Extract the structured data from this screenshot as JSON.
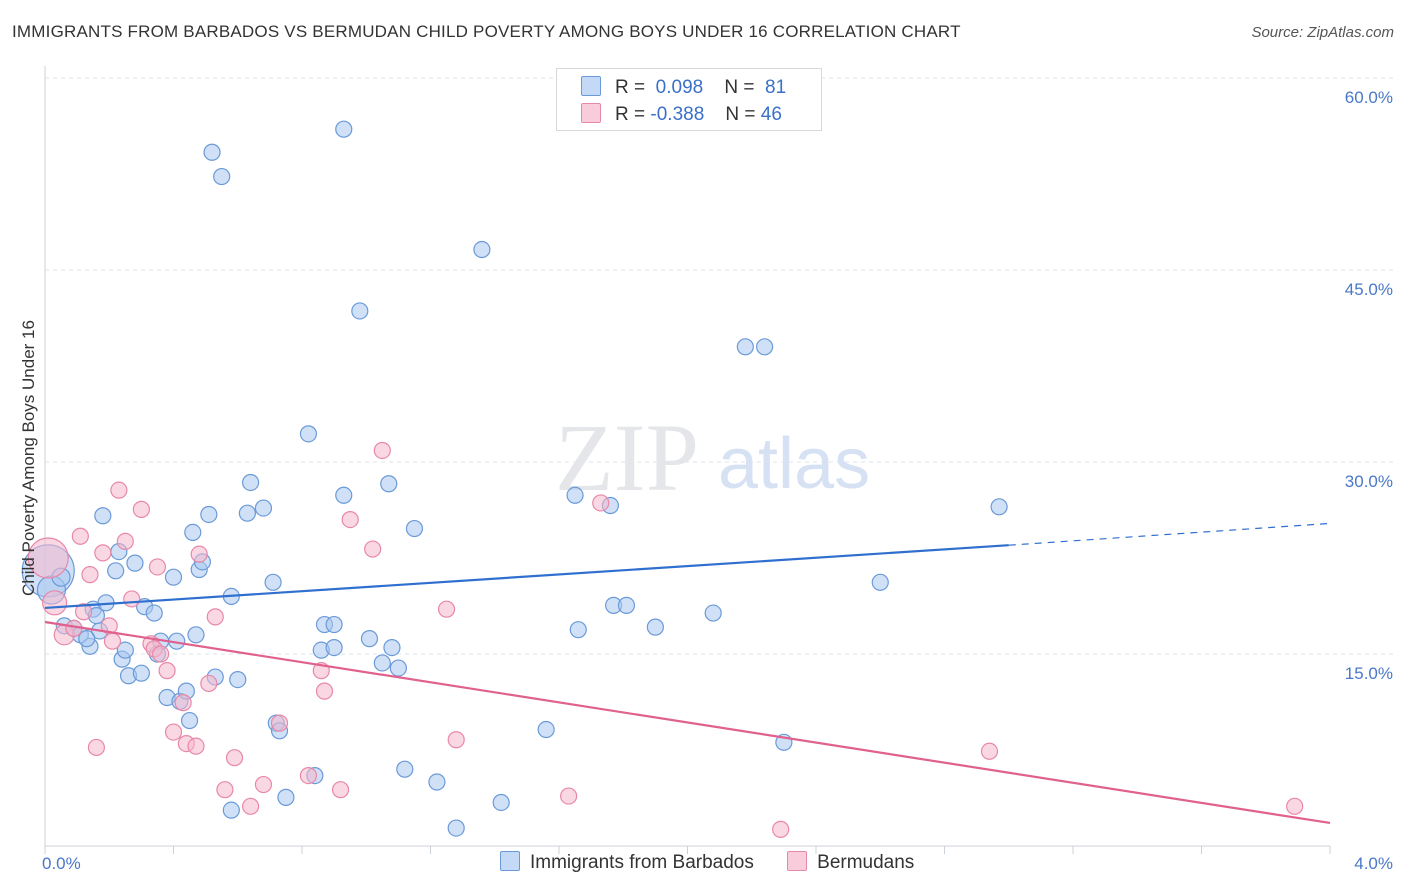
{
  "title": "IMMIGRANTS FROM BARBADOS VS BERMUDAN CHILD POVERTY AMONG BOYS UNDER 16 CORRELATION CHART",
  "source": "Source: ZipAtlas.com",
  "watermark": {
    "zip": "ZIP",
    "atlas": "atlas"
  },
  "colors": {
    "blue_fill": "#a9c8f0",
    "blue_stroke": "#6a9ad8",
    "blue_line": "#2f6fcf",
    "pink_fill": "#f5b8cc",
    "pink_stroke": "#e888a8",
    "pink_line": "#e0608e",
    "grid": "#dde3ec",
    "axis_label": "#4a78c8"
  },
  "legend": {
    "r_label": "R =",
    "n_label": "N =",
    "series": [
      {
        "r": "0.098",
        "n": "81"
      },
      {
        "r": "-0.388",
        "n": "46"
      }
    ]
  },
  "chart_data": {
    "type": "scatter",
    "title": "IMMIGRANTS FROM BARBADOS VS BERMUDAN CHILD POVERTY AMONG BOYS UNDER 16 CORRELATION CHART",
    "xlabel": "",
    "ylabel": "Child Poverty Among Boys Under 16",
    "xlim": [
      0,
      4
    ],
    "ylim": [
      0,
      60
    ],
    "x_tick_labels": [
      "0.0%",
      "4.0%"
    ],
    "y_tick_labels": [
      "15.0%",
      "30.0%",
      "45.0%",
      "60.0%"
    ],
    "y_ticks": [
      15,
      30,
      45,
      60
    ],
    "grid": true,
    "legend_position": "top-center",
    "series": [
      {
        "name": "Immigrants from Barbados",
        "trend": {
          "x": [
            0.0,
            3.0,
            4.0
          ],
          "y": [
            18.6,
            23.5,
            25.2
          ],
          "solid_until": 3.0
        },
        "points": [
          [
            0.01,
            21.5,
            26
          ],
          [
            0.02,
            20.0,
            14
          ],
          [
            0.05,
            21.0,
            9
          ],
          [
            0.06,
            17.2,
            8
          ],
          [
            0.09,
            17.0,
            8
          ],
          [
            0.11,
            16.5,
            8
          ],
          [
            0.14,
            15.6,
            8
          ],
          [
            0.15,
            18.5,
            8
          ],
          [
            0.17,
            16.8,
            8
          ],
          [
            0.19,
            19.0,
            8
          ],
          [
            0.22,
            21.5,
            8
          ],
          [
            0.24,
            14.6,
            8
          ],
          [
            0.18,
            25.8,
            8
          ],
          [
            0.23,
            23.0,
            8
          ],
          [
            0.28,
            22.1,
            8
          ],
          [
            0.26,
            13.3,
            8
          ],
          [
            0.31,
            18.7,
            8
          ],
          [
            0.34,
            18.2,
            8
          ],
          [
            0.36,
            16.0,
            8
          ],
          [
            0.35,
            15.0,
            8
          ],
          [
            0.38,
            11.6,
            8
          ],
          [
            0.4,
            21.0,
            8
          ],
          [
            0.41,
            16.0,
            8
          ],
          [
            0.42,
            11.3,
            8
          ],
          [
            0.44,
            12.1,
            8
          ],
          [
            0.46,
            24.5,
            8
          ],
          [
            0.47,
            16.5,
            8
          ],
          [
            0.48,
            21.6,
            8
          ],
          [
            0.49,
            22.2,
            8
          ],
          [
            0.51,
            25.9,
            8
          ],
          [
            0.52,
            54.2,
            8
          ],
          [
            0.53,
            13.2,
            8
          ],
          [
            0.55,
            52.3,
            8
          ],
          [
            0.58,
            19.5,
            8
          ],
          [
            0.6,
            13.0,
            8
          ],
          [
            0.63,
            26.0,
            8
          ],
          [
            0.64,
            28.4,
            8
          ],
          [
            0.68,
            26.4,
            8
          ],
          [
            0.71,
            20.6,
            8
          ],
          [
            0.72,
            9.6,
            8
          ],
          [
            0.73,
            9.0,
            8
          ],
          [
            0.75,
            3.8,
            8
          ],
          [
            0.58,
            2.8,
            8
          ],
          [
            0.82,
            32.2,
            8
          ],
          [
            0.84,
            5.5,
            8
          ],
          [
            0.86,
            15.3,
            8
          ],
          [
            0.87,
            17.3,
            8
          ],
          [
            0.9,
            17.3,
            8
          ],
          [
            0.9,
            15.5,
            8
          ],
          [
            0.93,
            56.0,
            8
          ],
          [
            0.93,
            27.4,
            8
          ],
          [
            0.98,
            41.8,
            8
          ],
          [
            1.01,
            16.2,
            8
          ],
          [
            1.05,
            14.3,
            8
          ],
          [
            1.07,
            28.3,
            8
          ],
          [
            1.08,
            15.5,
            8
          ],
          [
            1.1,
            13.9,
            8
          ],
          [
            1.12,
            6.0,
            8
          ],
          [
            1.15,
            24.8,
            8
          ],
          [
            1.22,
            5.0,
            8
          ],
          [
            1.28,
            1.4,
            8
          ],
          [
            1.36,
            46.6,
            8
          ],
          [
            1.42,
            3.4,
            8
          ],
          [
            1.56,
            9.1,
            8
          ],
          [
            1.65,
            27.4,
            8
          ],
          [
            1.66,
            16.9,
            8
          ],
          [
            1.77,
            18.8,
            8
          ],
          [
            1.81,
            18.8,
            8
          ],
          [
            1.76,
            26.6,
            8
          ],
          [
            1.9,
            17.1,
            8
          ],
          [
            2.08,
            18.2,
            8
          ],
          [
            2.18,
            39.0,
            8
          ],
          [
            2.24,
            39.0,
            8
          ],
          [
            2.3,
            8.1,
            8
          ],
          [
            2.6,
            20.6,
            8
          ],
          [
            2.97,
            26.5,
            8
          ],
          [
            0.13,
            16.2,
            8
          ],
          [
            0.16,
            18.0,
            8
          ],
          [
            0.25,
            15.3,
            8
          ],
          [
            0.3,
            13.5,
            8
          ],
          [
            0.45,
            9.8,
            8
          ]
        ]
      },
      {
        "name": "Bermudans",
        "trend": {
          "x": [
            0.0,
            4.0
          ],
          "y": [
            17.5,
            1.8
          ],
          "solid_until": 4.0
        },
        "points": [
          [
            0.01,
            22.5,
            20
          ],
          [
            0.03,
            19.0,
            12
          ],
          [
            0.06,
            16.5,
            10
          ],
          [
            0.09,
            17.0,
            8
          ],
          [
            0.11,
            24.2,
            8
          ],
          [
            0.14,
            21.2,
            8
          ],
          [
            0.16,
            7.7,
            8
          ],
          [
            0.18,
            22.9,
            8
          ],
          [
            0.2,
            17.2,
            8
          ],
          [
            0.23,
            27.8,
            8
          ],
          [
            0.25,
            23.8,
            8
          ],
          [
            0.27,
            19.3,
            8
          ],
          [
            0.3,
            26.3,
            8
          ],
          [
            0.33,
            15.8,
            8
          ],
          [
            0.34,
            15.4,
            8
          ],
          [
            0.35,
            21.8,
            8
          ],
          [
            0.36,
            15.0,
            8
          ],
          [
            0.38,
            13.7,
            8
          ],
          [
            0.4,
            8.9,
            8
          ],
          [
            0.43,
            11.2,
            8
          ],
          [
            0.44,
            8.0,
            8
          ],
          [
            0.47,
            7.8,
            8
          ],
          [
            0.48,
            22.8,
            8
          ],
          [
            0.51,
            12.7,
            8
          ],
          [
            0.53,
            17.9,
            8
          ],
          [
            0.56,
            4.4,
            8
          ],
          [
            0.59,
            6.9,
            8
          ],
          [
            0.64,
            3.1,
            8
          ],
          [
            0.68,
            4.8,
            8
          ],
          [
            0.73,
            9.6,
            8
          ],
          [
            0.82,
            5.5,
            8
          ],
          [
            0.86,
            13.7,
            8
          ],
          [
            0.87,
            12.1,
            8
          ],
          [
            0.92,
            4.4,
            8
          ],
          [
            0.95,
            25.5,
            8
          ],
          [
            1.02,
            23.2,
            8
          ],
          [
            1.05,
            30.9,
            8
          ],
          [
            1.25,
            18.5,
            8
          ],
          [
            1.28,
            8.3,
            8
          ],
          [
            1.63,
            3.9,
            8
          ],
          [
            1.73,
            26.8,
            8
          ],
          [
            2.29,
            1.3,
            8
          ],
          [
            2.94,
            7.4,
            8
          ],
          [
            3.89,
            3.1,
            8
          ],
          [
            0.12,
            18.3,
            8
          ],
          [
            0.21,
            16.0,
            8
          ]
        ]
      }
    ]
  }
}
